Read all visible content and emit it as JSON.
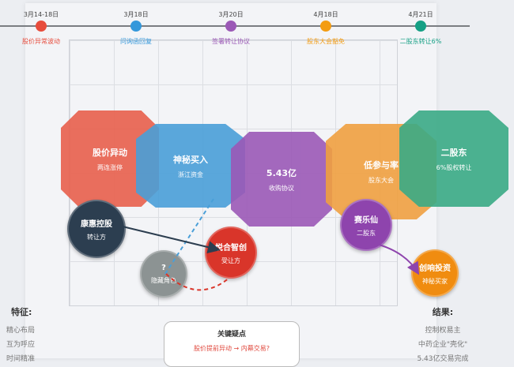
{
  "timeline": [
    {
      "date": "3月14-18日",
      "label": "股价异常波动",
      "color": "#e74c3c"
    },
    {
      "date": "3月18日",
      "label": "问询函回复",
      "color": "#3498db"
    },
    {
      "date": "3月20日",
      "label": "签署转让协议",
      "color": "#9b59b6"
    },
    {
      "date": "4月18日",
      "label": "股东大会豁免",
      "color": "#f39c12"
    },
    {
      "date": "4月21日",
      "label": "二股东转让6%",
      "color": "#16a085"
    }
  ],
  "events": [
    {
      "title": "股价异动",
      "sub": "两连涨停",
      "color": "#e8604c"
    },
    {
      "title": "神秘买入",
      "sub": "浙江资金",
      "color": "#4a9fd8"
    },
    {
      "title": "5.43亿",
      "sub": "收购协议",
      "color": "#9b59b6"
    },
    {
      "title": "低参与率",
      "sub": "股东大会",
      "color": "#f0a040"
    },
    {
      "title": "二股东",
      "sub": "6%股权转让",
      "color": "#3aaa85"
    }
  ],
  "actors": [
    {
      "title": "康惠控股",
      "sub": "转让方",
      "color": "#2c3e50"
    },
    {
      "title": "?",
      "sub": "隐藏角色",
      "color": "#8c9393"
    },
    {
      "title": "悦合智创",
      "sub": "受让方",
      "color": "#d9352a"
    },
    {
      "title": "赛乐仙",
      "sub": "二股东",
      "color": "#8e44ad"
    },
    {
      "title": "创响投资",
      "sub": "神秘买家",
      "color": "#f08c10"
    }
  ],
  "features": {
    "heading": "特征:",
    "items": [
      "精心布局",
      "互为呼应",
      "时间精准"
    ]
  },
  "results": {
    "heading": "结果:",
    "items": [
      "控制权易主",
      "中药企业\"壳化\"",
      "5.43亿交易完成"
    ]
  },
  "key_question": {
    "heading": "关键疑点",
    "text": "股价提前异动 → 内幕交易?"
  }
}
